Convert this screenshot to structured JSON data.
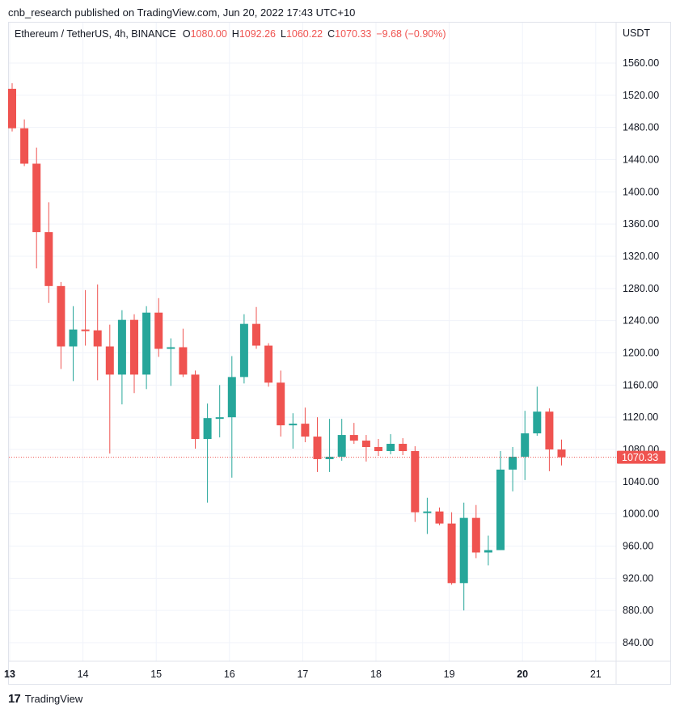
{
  "header": {
    "published": "cnb_research published on TradingView.com, Jun 20, 2022 17:43 UTC+10"
  },
  "legend": {
    "symbol": "Ethereum / TetherUS, 4h, BINANCE",
    "o_label": "O",
    "o_value": "1080.00",
    "h_label": "H",
    "h_value": "1092.26",
    "l_label": "L",
    "l_value": "1060.22",
    "c_label": "C",
    "c_value": "1070.33",
    "change": "−9.68 (−0.90%)"
  },
  "footer": {
    "brand_text": "TradingView",
    "brand_logo": "17"
  },
  "chart_data": {
    "type": "candlestick",
    "currency": "USDT",
    "interval": "4h",
    "exchange": "BINANCE",
    "last_price": 1070.33,
    "last_price_label": "1070.33",
    "ylim": [
      820,
      1590
    ],
    "y_ticks": [
      840,
      880,
      920,
      960,
      1000,
      1040,
      1080,
      1120,
      1160,
      1200,
      1240,
      1280,
      1320,
      1360,
      1400,
      1440,
      1480,
      1520,
      1560
    ],
    "y_tick_labels": [
      "840.00",
      "880.00",
      "920.00",
      "960.00",
      "1000.00",
      "1040.00",
      "1080.00",
      "1120.00",
      "1160.00",
      "1200.00",
      "1240.00",
      "1280.00",
      "1320.00",
      "1360.00",
      "1400.00",
      "1440.00",
      "1480.00",
      "1520.00",
      "1560.00"
    ],
    "x_ticks": [
      {
        "label": "13",
        "day": 13,
        "bold": true
      },
      {
        "label": "14",
        "day": 14,
        "bold": false
      },
      {
        "label": "15",
        "day": 15,
        "bold": false
      },
      {
        "label": "16",
        "day": 16,
        "bold": false
      },
      {
        "label": "17",
        "day": 17,
        "bold": false
      },
      {
        "label": "18",
        "day": 18,
        "bold": false
      },
      {
        "label": "19",
        "day": 19,
        "bold": false
      },
      {
        "label": "20",
        "day": 20,
        "bold": true
      },
      {
        "label": "21",
        "day": 21,
        "bold": false
      }
    ],
    "grid": true,
    "colors": {
      "up": "#26a69a",
      "down": "#ef5350",
      "grid": "#f0f3fa",
      "last_price_line": "#ef5350"
    },
    "candles": [
      {
        "o": 1528,
        "h": 1535,
        "l": 1475,
        "c": 1479
      },
      {
        "o": 1479,
        "h": 1490,
        "l": 1432,
        "c": 1435
      },
      {
        "o": 1435,
        "h": 1455,
        "l": 1305,
        "c": 1350
      },
      {
        "o": 1350,
        "h": 1387,
        "l": 1262,
        "c": 1283
      },
      {
        "o": 1283,
        "h": 1288,
        "l": 1180,
        "c": 1208
      },
      {
        "o": 1208,
        "h": 1258,
        "l": 1165,
        "c": 1229
      },
      {
        "o": 1229,
        "h": 1278,
        "l": 1209,
        "c": 1228
      },
      {
        "o": 1228,
        "h": 1285,
        "l": 1166,
        "c": 1208
      },
      {
        "o": 1208,
        "h": 1235,
        "l": 1075,
        "c": 1173
      },
      {
        "o": 1173,
        "h": 1253,
        "l": 1136,
        "c": 1241
      },
      {
        "o": 1241,
        "h": 1248,
        "l": 1150,
        "c": 1173
      },
      {
        "o": 1173,
        "h": 1258,
        "l": 1155,
        "c": 1250
      },
      {
        "o": 1250,
        "h": 1268,
        "l": 1195,
        "c": 1205
      },
      {
        "o": 1205,
        "h": 1218,
        "l": 1159,
        "c": 1207
      },
      {
        "o": 1207,
        "h": 1230,
        "l": 1170,
        "c": 1173
      },
      {
        "o": 1173,
        "h": 1178,
        "l": 1081,
        "c": 1093
      },
      {
        "o": 1093,
        "h": 1137,
        "l": 1014,
        "c": 1119
      },
      {
        "o": 1119,
        "h": 1160,
        "l": 1095,
        "c": 1120
      },
      {
        "o": 1120,
        "h": 1196,
        "l": 1045,
        "c": 1170
      },
      {
        "o": 1170,
        "h": 1248,
        "l": 1162,
        "c": 1236
      },
      {
        "o": 1236,
        "h": 1257,
        "l": 1205,
        "c": 1209
      },
      {
        "o": 1209,
        "h": 1212,
        "l": 1158,
        "c": 1163
      },
      {
        "o": 1163,
        "h": 1178,
        "l": 1096,
        "c": 1110
      },
      {
        "o": 1110,
        "h": 1125,
        "l": 1081,
        "c": 1112
      },
      {
        "o": 1112,
        "h": 1132,
        "l": 1089,
        "c": 1096
      },
      {
        "o": 1096,
        "h": 1120,
        "l": 1052,
        "c": 1068
      },
      {
        "o": 1068,
        "h": 1118,
        "l": 1052,
        "c": 1071
      },
      {
        "o": 1071,
        "h": 1118,
        "l": 1066,
        "c": 1098
      },
      {
        "o": 1098,
        "h": 1113,
        "l": 1087,
        "c": 1091
      },
      {
        "o": 1091,
        "h": 1098,
        "l": 1065,
        "c": 1083
      },
      {
        "o": 1083,
        "h": 1093,
        "l": 1072,
        "c": 1078
      },
      {
        "o": 1078,
        "h": 1099,
        "l": 1074,
        "c": 1087
      },
      {
        "o": 1087,
        "h": 1094,
        "l": 1073,
        "c": 1078
      },
      {
        "o": 1078,
        "h": 1084,
        "l": 990,
        "c": 1002
      },
      {
        "o": 1002,
        "h": 1020,
        "l": 975,
        "c": 1003
      },
      {
        "o": 1003,
        "h": 1008,
        "l": 986,
        "c": 988
      },
      {
        "o": 988,
        "h": 1002,
        "l": 912,
        "c": 914
      },
      {
        "o": 914,
        "h": 1014,
        "l": 880,
        "c": 995
      },
      {
        "o": 995,
        "h": 1011,
        "l": 945,
        "c": 952
      },
      {
        "o": 952,
        "h": 973,
        "l": 936,
        "c": 955
      },
      {
        "o": 955,
        "h": 1078,
        "l": 955,
        "c": 1055
      },
      {
        "o": 1055,
        "h": 1083,
        "l": 1028,
        "c": 1071
      },
      {
        "o": 1071,
        "h": 1128,
        "l": 1042,
        "c": 1100
      },
      {
        "o": 1100,
        "h": 1158,
        "l": 1097,
        "c": 1127
      },
      {
        "o": 1127,
        "h": 1131,
        "l": 1053,
        "c": 1080
      },
      {
        "o": 1080,
        "h": 1092.26,
        "l": 1060.22,
        "c": 1070.33
      }
    ]
  }
}
